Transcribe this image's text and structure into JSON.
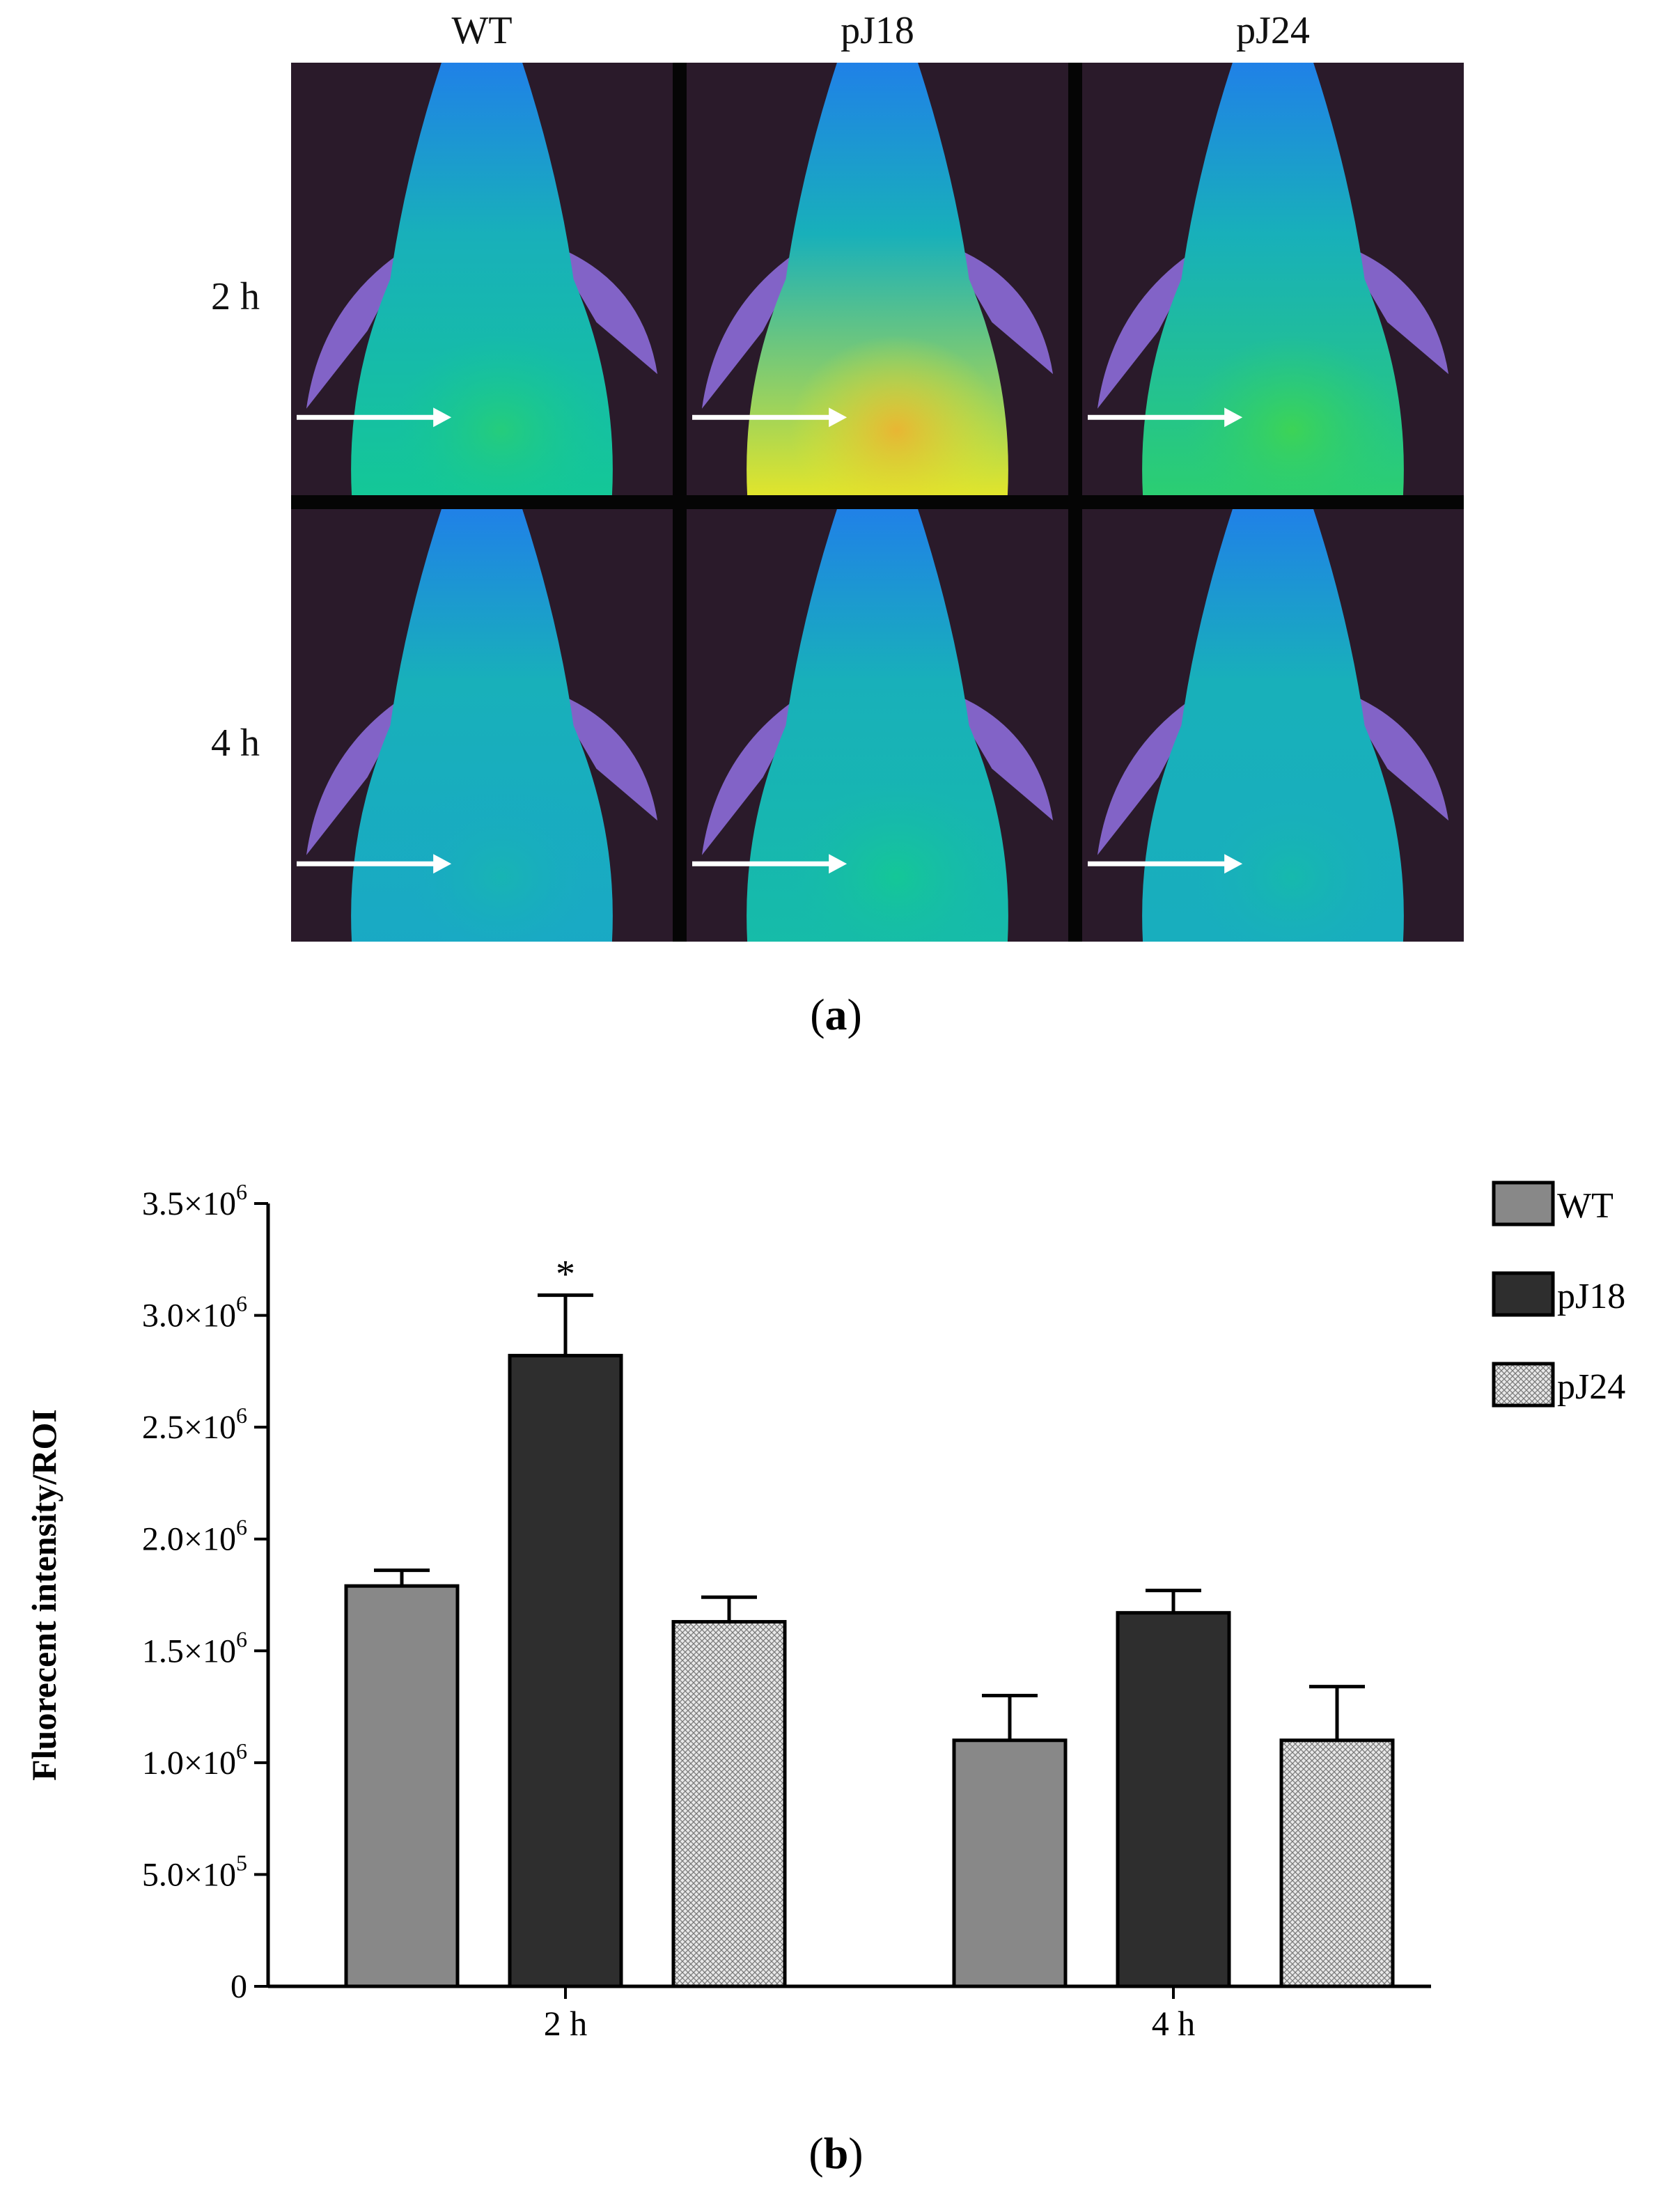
{
  "panel_a": {
    "caption_letter": "a",
    "columns": [
      "WT",
      "pJ18",
      "pJ24"
    ],
    "rows": [
      "2 h",
      "4 h"
    ],
    "heat_levels": [
      [
        0.55,
        0.9,
        0.62
      ],
      [
        0.42,
        0.5,
        0.44
      ]
    ],
    "colors": {
      "background": "#2a1a2a",
      "separator": "#050505",
      "limb": "#8c6cd8",
      "arrow": "#ffffff"
    }
  },
  "panel_b": {
    "caption_letter": "b"
  },
  "chart_data": {
    "type": "bar",
    "categories": [
      "2 h",
      "4 h"
    ],
    "series": [
      {
        "name": "WT",
        "values": [
          1790000,
          1100000
        ],
        "errors": [
          70000,
          200000
        ],
        "fill": "#888888"
      },
      {
        "name": "pJ18",
        "values": [
          2820000,
          1670000
        ],
        "errors": [
          270000,
          100000
        ],
        "fill": "#2e2e2e"
      },
      {
        "name": "pJ24",
        "values": [
          1630000,
          1100000
        ],
        "errors": [
          110000,
          240000
        ],
        "fill": "hatch"
      }
    ],
    "annotations": [
      {
        "text": "*",
        "series": "pJ18",
        "category": "2 h"
      }
    ],
    "ylabel": "Fluorecent intensity/ROI",
    "xlabel": "",
    "ylim": [
      0,
      3500000
    ],
    "yticks": [
      {
        "value": 0,
        "mant": "0",
        "exp": ""
      },
      {
        "value": 500000,
        "mant": "5.0×10",
        "exp": "5"
      },
      {
        "value": 1000000,
        "mant": "1.0×10",
        "exp": "6"
      },
      {
        "value": 1500000,
        "mant": "1.5×10",
        "exp": "6"
      },
      {
        "value": 2000000,
        "mant": "2.0×10",
        "exp": "6"
      },
      {
        "value": 2500000,
        "mant": "2.5×10",
        "exp": "6"
      },
      {
        "value": 3000000,
        "mant": "3.0×10",
        "exp": "6"
      },
      {
        "value": 3500000,
        "mant": "3.5×10",
        "exp": "6"
      }
    ],
    "legend": "top-right",
    "grid": false
  }
}
